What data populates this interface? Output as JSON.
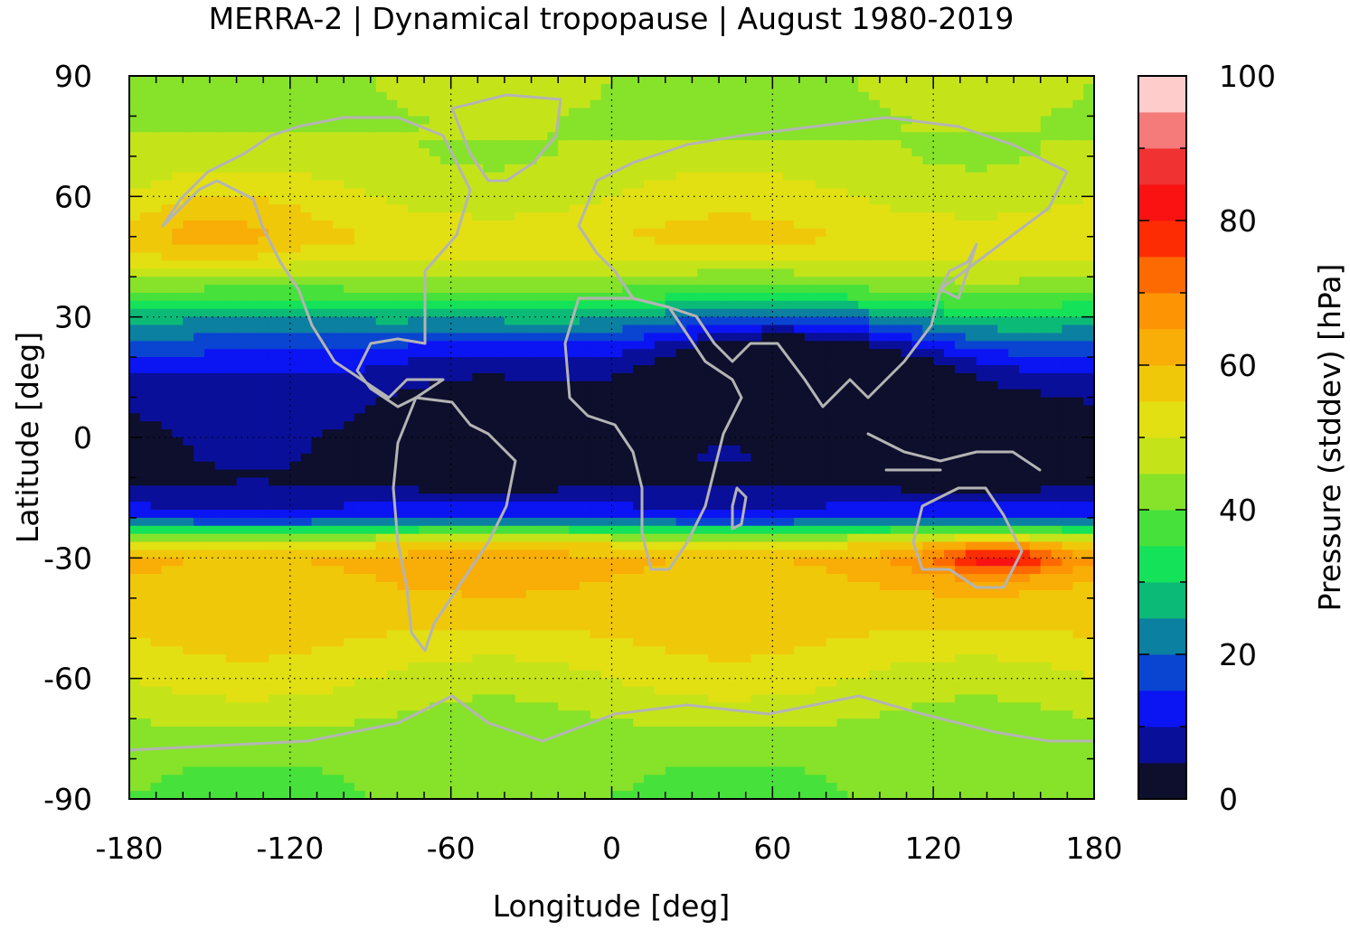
{
  "title": "MERRA-2 | Dynamical tropopause | August 1980-2019",
  "chart_data": {
    "type": "heatmap",
    "title": "MERRA-2 | Dynamical tropopause | August 1980-2019",
    "xlabel": "Longitude [deg]",
    "ylabel": "Latitude [deg]",
    "xlim": [
      -180,
      180
    ],
    "ylim": [
      -90,
      90
    ],
    "x_ticks": [
      -180,
      -120,
      -60,
      0,
      60,
      120,
      180
    ],
    "x_tick_labels": [
      "-180",
      "-120",
      "-60",
      "0",
      "60",
      "120",
      "180"
    ],
    "y_ticks": [
      90,
      60,
      30,
      0,
      -30,
      -60,
      -90
    ],
    "y_tick_labels": [
      "90",
      "60",
      "30",
      "0",
      "-30",
      "-60",
      "-90"
    ],
    "grid": true,
    "coastlines": true,
    "coastline_color": "#b4b4b4",
    "colorbar": {
      "label": "Pressure (stddev) [hPa]",
      "range": [
        0,
        100
      ],
      "ticks": [
        0,
        20,
        40,
        60,
        80,
        100
      ],
      "tick_labels": [
        "0",
        "20",
        "40",
        "60",
        "80",
        "100"
      ],
      "levels": [
        0,
        5,
        10,
        15,
        20,
        25,
        30,
        35,
        40,
        45,
        50,
        55,
        60,
        65,
        70,
        75,
        80,
        85,
        90,
        95,
        100
      ],
      "colors": [
        "#0d0f2c",
        "#0a0f9a",
        "#0b14f2",
        "#0a45d2",
        "#0b80a0",
        "#0cba78",
        "#14e258",
        "#46e13b",
        "#87e22a",
        "#c4e419",
        "#e2e012",
        "#f0c80a",
        "#f8ae06",
        "#fd9404",
        "#fe6a02",
        "#fe2c02",
        "#fa1212",
        "#f03232",
        "#f57a7a",
        "#ffcccc"
      ]
    },
    "zonal_profile": {
      "description_lat": [
        -90,
        -80,
        -70,
        -60,
        -50,
        -40,
        -35,
        -31,
        -27,
        -24,
        -20,
        -15,
        -10,
        0,
        10,
        15,
        20,
        25,
        30,
        35,
        40,
        45,
        50,
        60,
        70,
        80,
        90
      ],
      "stddev_hpa": [
        40,
        42,
        45,
        50,
        55,
        58,
        60,
        62,
        55,
        40,
        15,
        7,
        3,
        3,
        6,
        10,
        15,
        22,
        28,
        38,
        45,
        52,
        55,
        50,
        46,
        44,
        45
      ]
    }
  }
}
